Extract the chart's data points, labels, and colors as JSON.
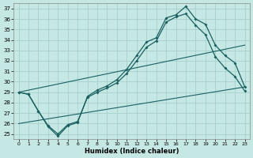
{
  "xlabel": "Humidex (Indice chaleur)",
  "bg_color": "#c5e8e5",
  "grid_color": "#a8d0cc",
  "line_color": "#1a6060",
  "xlim": [
    -0.5,
    23.5
  ],
  "ylim": [
    24.5,
    37.5
  ],
  "xticks": [
    0,
    1,
    2,
    3,
    4,
    5,
    6,
    7,
    8,
    9,
    10,
    11,
    12,
    13,
    14,
    15,
    16,
    17,
    18,
    19,
    20,
    21,
    22,
    23
  ],
  "yticks": [
    25,
    26,
    27,
    28,
    29,
    30,
    31,
    32,
    33,
    34,
    35,
    36,
    37
  ],
  "line1_x": [
    0,
    1,
    2,
    3,
    4,
    5,
    6,
    7,
    8,
    9,
    10,
    11,
    12,
    13,
    14,
    15,
    16,
    17,
    18,
    19,
    20,
    21,
    22,
    23
  ],
  "line1_y": [
    29.0,
    28.8,
    27.2,
    25.7,
    24.8,
    25.8,
    26.1,
    28.6,
    29.2,
    29.6,
    30.2,
    31.2,
    32.5,
    33.8,
    34.2,
    36.1,
    36.4,
    37.2,
    36.0,
    35.5,
    33.5,
    32.5,
    31.8,
    29.5
  ],
  "line2_x": [
    0,
    1,
    2,
    3,
    4,
    5,
    6,
    7,
    8,
    9,
    10,
    11,
    12,
    13,
    14,
    15,
    16,
    17,
    18,
    19,
    20,
    21,
    22,
    23
  ],
  "line2_y": [
    29.0,
    28.8,
    27.2,
    25.8,
    25.0,
    25.9,
    26.2,
    28.5,
    29.0,
    29.4,
    29.9,
    30.8,
    32.0,
    33.3,
    33.9,
    35.7,
    36.2,
    36.5,
    35.4,
    34.5,
    32.4,
    31.3,
    30.5,
    29.1
  ],
  "line3_x": [
    0,
    23
  ],
  "line3_y": [
    29.0,
    33.5
  ],
  "line4_x": [
    0,
    23
  ],
  "line4_y": [
    26.0,
    29.5
  ]
}
